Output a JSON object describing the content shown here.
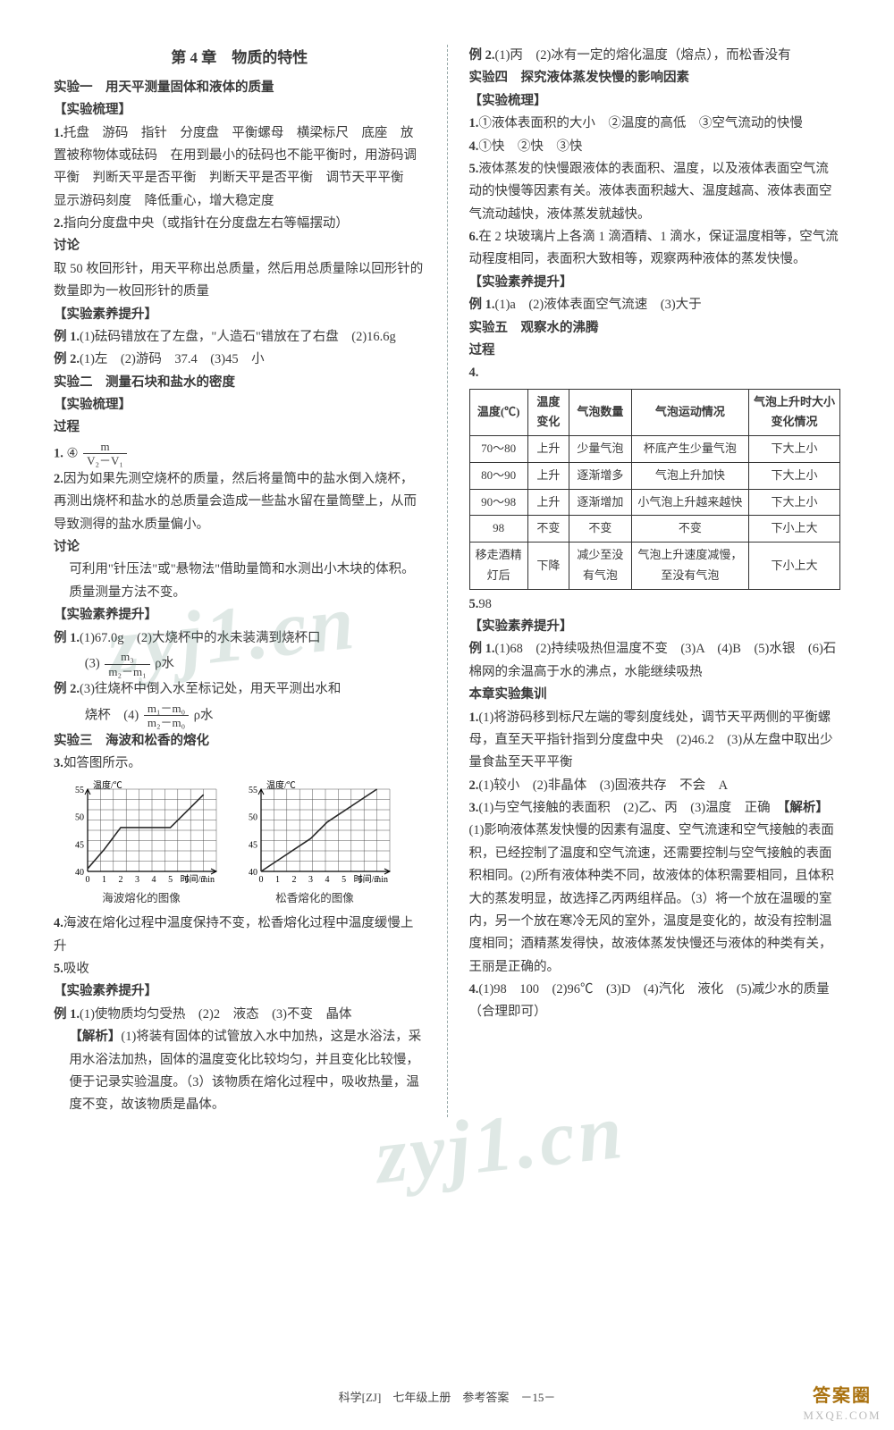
{
  "footer": "科学[ZJ]　七年级上册　参考答案　－15－",
  "badge": {
    "top_text": "答案圈",
    "bottom_text": "MXQE.COM"
  },
  "watermark": "zyj1.cn",
  "left": {
    "chapter_title": "第 4 章　物质的特性",
    "exp1": {
      "title": "实验一　用天平测量固体和液体的质量",
      "sort_h": "【实验梳理】",
      "p1_label": "1.",
      "p1_text": "托盘　游码　指针　分度盘　平衡螺母　横梁标尺　底座　放置被称物体或砝码　在用到最小的砝码也不能平衡时，用游码调平衡　判断天平是否平衡　判断天平是否平衡　调节天平平衡　显示游码刻度　降低重心，增大稳定度",
      "p2_label": "2.",
      "p2_text": "指向分度盘中央（或指针在分度盘左右等幅摆动）",
      "disc_h": "讨论",
      "disc_text": "取 50 枚回形针，用天平称出总质量，然后用总质量除以回形针的数量即为一枚回形针的质量",
      "skill_h": "【实验素养提升】",
      "e1_label": "例 1.",
      "e1_text": "(1)砝码错放在了左盘，\"人造石\"错放在了右盘　(2)16.6g",
      "e2_label": "例 2.",
      "e2_text": "(1)左　(2)游码　37.4　(3)45　小"
    },
    "exp2": {
      "title": "实验二　测量石块和盐水的密度",
      "sort_h": "【实验梳理】",
      "proc_h": "过程",
      "p1_label": "1.",
      "p1_prefix": "④",
      "p2_label": "2.",
      "p2_text": "因为如果先测空烧杯的质量，然后将量筒中的盐水倒入烧杯，再测出烧杯和盐水的总质量会造成一些盐水留在量筒壁上，从而导致测得的盐水质量偏小。",
      "disc_h": "讨论",
      "disc_text": "可利用\"针压法\"或\"悬物法\"借助量筒和水测出小木块的体积。质量测量方法不变。",
      "skill_h": "【实验素养提升】",
      "e1_label": "例 1.",
      "e1_1": "(1)67.0g　(2)大烧杯中的水未装满到烧杯口",
      "e1_3_prefix": "(3)",
      "e2_label": "例 2.",
      "e2_3_prefix": "(3)往烧杯中倒入水至标记处，用天平测出水和",
      "e2_4_prefix": "烧杯　(4)"
    },
    "exp3": {
      "title": "实验三　海波和松香的熔化",
      "p3_label": "3.",
      "p3_text": "如答图所示。",
      "cap1": "海波熔化的图像",
      "cap2": "松香熔化的图像",
      "p4_label": "4.",
      "p4_text": "海波在熔化过程中温度保持不变，松香熔化过程中温度缓慢上升",
      "p5_label": "5.",
      "p5_text": "吸收",
      "skill_h": "【实验素养提升】",
      "e1_label": "例 1.",
      "e1_text": "(1)使物质均匀受热　(2)2　液态　(3)不变　晶体",
      "an_h": "【解析】",
      "an_text": "(1)将装有固体的试管放入水中加热，这是水浴法，采用水浴法加热，固体的温度变化比较均匀，并且变化比较慢，便于记录实验温度。（3）该物质在熔化过程中，吸收热量，温度不变，故该物质是晶体。"
    },
    "frac1": {
      "num": "m",
      "den": "V₂－V₁"
    },
    "frac2": {
      "num": "m₃",
      "den": "m₂－m₁"
    },
    "frac2_suffix": "ρ水",
    "frac3": {
      "num": "m₁－m₀",
      "den": "m₂－m₀"
    },
    "frac3_suffix": "ρ水",
    "charts": {
      "y_label": "温度/℃",
      "x_label": "时间/min",
      "y_ticks": [
        "40",
        "45",
        "50",
        "55"
      ],
      "x_ticks": [
        "0",
        "1",
        "2",
        "3",
        "4",
        "5",
        "6",
        "7"
      ],
      "grid_cols": 10,
      "grid_rows": 8,
      "left_curve": [
        [
          0,
          40.5
        ],
        [
          1,
          44
        ],
        [
          2,
          48
        ],
        [
          3,
          48
        ],
        [
          4,
          48
        ],
        [
          5,
          48
        ],
        [
          6,
          51
        ],
        [
          7,
          54
        ]
      ],
      "right_curve": [
        [
          0,
          40
        ],
        [
          1,
          42
        ],
        [
          2,
          44
        ],
        [
          3,
          46
        ],
        [
          4,
          49
        ],
        [
          5,
          51
        ],
        [
          6,
          53
        ],
        [
          7,
          55
        ]
      ],
      "line_color": "#2a2a2a",
      "grid_color": "#555"
    }
  },
  "right": {
    "exp3_e2_label": "例 2.",
    "exp3_e2_text": "(1)丙　(2)冰有一定的熔化温度（熔点），而松香没有",
    "exp4": {
      "title": "实验四　探究液体蒸发快慢的影响因素",
      "sort_h": "【实验梳理】",
      "p1_label": "1.",
      "p1_text": "①液体表面积的大小　②温度的高低　③空气流动的快慢",
      "p4_label": "4.",
      "p4_text": "①快　②快　③快",
      "p5_label": "5.",
      "p5_text": "液体蒸发的快慢跟液体的表面积、温度，以及液体表面空气流动的快慢等因素有关。液体表面积越大、温度越高、液体表面空气流动越快，液体蒸发就越快。",
      "p6_label": "6.",
      "p6_text": "在 2 块玻璃片上各滴 1 滴酒精、1 滴水，保证温度相等，空气流动程度相同，表面积大致相等，观察两种液体的蒸发快慢。",
      "skill_h": "【实验素养提升】",
      "e1_label": "例 1.",
      "e1_text": "(1)a　(2)液体表面空气流速　(3)大于"
    },
    "exp5": {
      "title": "实验五　观察水的沸腾",
      "proc_h": "过程",
      "p4_label": "4.",
      "table": {
        "headers": [
          "温度(℃)",
          "温度变化",
          "气泡数量",
          "气泡运动情况",
          "气泡上升时大小变化情况"
        ],
        "rows": [
          [
            "70～80",
            "上升",
            "少量气泡",
            "杯底产生少量气泡",
            "下大上小"
          ],
          [
            "80～90",
            "上升",
            "逐渐增多",
            "气泡上升加快",
            "下大上小"
          ],
          [
            "90～98",
            "上升",
            "逐渐增加",
            "小气泡上升越来越快",
            "下大上小"
          ],
          [
            "98",
            "不变",
            "不变",
            "不变",
            "下小上大"
          ],
          [
            "移走酒精灯后",
            "下降",
            "减少至没有气泡",
            "气泡上升速度减慢，至没有气泡",
            "下小上大"
          ]
        ]
      },
      "p5_label": "5.",
      "p5_text": "98",
      "skill_h": "【实验素养提升】",
      "e1_label": "例 1.",
      "e1_text": "(1)68　(2)持续吸热但温度不变　(3)A　(4)B　(5)水银　(6)石棉网的余温高于水的沸点，水能继续吸热"
    },
    "train": {
      "title": "本章实验集训",
      "q1_label": "1.",
      "q1_text": "(1)将游码移到标尺左端的零刻度线处，调节天平两侧的平衡螺母，直至天平指针指到分度盘中央　(2)46.2　(3)从左盘中取出少量食盐至天平平衡",
      "q2_label": "2.",
      "q2_text": "(1)较小　(2)非晶体　(3)固液共存　不会　A",
      "q3_label": "3.",
      "q3_1": "(1)与空气接触的表面积　(2)乙、丙　(3)温度　正确",
      "q3_an_h": "【解析】",
      "q3_an": "(1)影响液体蒸发快慢的因素有温度、空气流速和空气接触的表面积，已经控制了温度和空气流速，还需要控制与空气接触的表面积相同。(2)所有液体种类不同，故液体的体积需要相同，且体积大的蒸发明显，故选择乙丙两组样品。（3）将一个放在温暖的室内，另一个放在寒冷无风的室外，温度是变化的，故没有控制温度相同；酒精蒸发得快，故液体蒸发快慢还与液体的种类有关，王丽是正确的。",
      "q4_label": "4.",
      "q4_text": "(1)98　100　(2)96℃　(3)D　(4)汽化　液化　(5)减少水的质量（合理即可）"
    }
  }
}
